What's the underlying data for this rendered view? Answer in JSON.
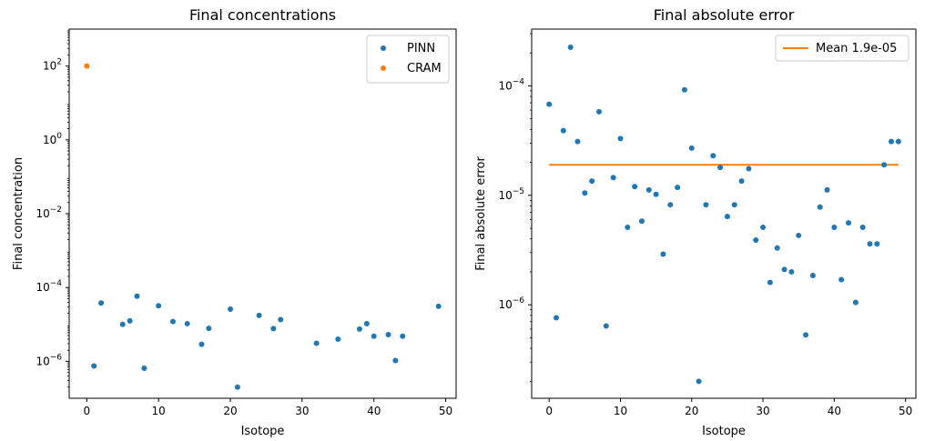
{
  "chart_data": [
    {
      "type": "scatter",
      "title": "Final concentrations",
      "xlabel": "Isotope",
      "ylabel": "Final concentration",
      "yscale": "log",
      "xlim": [
        -2.45,
        51.45
      ],
      "ylim": [
        1e-07,
        1000
      ],
      "xticks": [
        0,
        10,
        20,
        30,
        40,
        50
      ],
      "xtick_labels": [
        "0",
        "10",
        "20",
        "30",
        "40",
        "50"
      ],
      "yticks": [
        1e-06,
        0.0001,
        0.01,
        1,
        100
      ],
      "ytick_labels": [
        {
          "base": "10",
          "exp": "−6"
        },
        {
          "base": "10",
          "exp": "−4"
        },
        {
          "base": "10",
          "exp": "−2"
        },
        {
          "base": "10",
          "exp": "0"
        },
        {
          "base": "10",
          "exp": "2"
        }
      ],
      "legend": {
        "position": "upper right",
        "entries": [
          "PINN",
          "CRAM"
        ]
      },
      "series": [
        {
          "name": "PINN",
          "color": "#1f77b4",
          "x": [
            1,
            2,
            5,
            6,
            7,
            8,
            10,
            12,
            14,
            16,
            17,
            20,
            21,
            24,
            26,
            27,
            32,
            35,
            38,
            39,
            40,
            42,
            43,
            44,
            49
          ],
          "y": [
            7.5e-07,
            3.8e-05,
            1e-05,
            1.25e-05,
            5.8e-05,
            6.5e-07,
            3.2e-05,
            1.2e-05,
            1.05e-05,
            2.9e-06,
            7.8e-06,
            2.6e-05,
            2e-07,
            1.75e-05,
            7.7e-06,
            1.35e-05,
            3.1e-06,
            4e-06,
            7.5e-06,
            1.05e-05,
            4.8e-06,
            5.3e-06,
            1.05e-06,
            4.8e-06,
            3.1e-05
          ]
        },
        {
          "name": "CRAM",
          "color": "#ff7f0e",
          "x": [
            0
          ],
          "y": [
            100
          ]
        }
      ]
    },
    {
      "type": "scatter",
      "title": "Final absolute error",
      "xlabel": "Isotope",
      "ylabel": "Final absolute error",
      "yscale": "log",
      "xlim": [
        -2.45,
        51.45
      ],
      "ylim": [
        1.4e-07,
        0.00033
      ],
      "xticks": [
        0,
        10,
        20,
        30,
        40,
        50
      ],
      "xtick_labels": [
        "0",
        "10",
        "20",
        "30",
        "40",
        "50"
      ],
      "yticks": [
        1e-06,
        1e-05,
        0.0001
      ],
      "ytick_labels": [
        {
          "base": "10",
          "exp": "−6"
        },
        {
          "base": "10",
          "exp": "−5"
        },
        {
          "base": "10",
          "exp": "−4"
        }
      ],
      "legend": {
        "position": "upper right",
        "entries": [
          "Mean 1.9e-05"
        ]
      },
      "mean_line": {
        "label": "Mean 1.9e-05",
        "value": 1.9e-05,
        "x_range": [
          0,
          49
        ],
        "color": "#ff7f0e"
      },
      "series": [
        {
          "name": "",
          "color": "#1f77b4",
          "x": [
            0,
            1,
            2,
            3,
            4,
            5,
            6,
            7,
            8,
            9,
            10,
            11,
            12,
            13,
            14,
            15,
            16,
            17,
            18,
            19,
            20,
            21,
            22,
            23,
            24,
            25,
            26,
            27,
            28,
            29,
            30,
            31,
            32,
            33,
            34,
            35,
            36,
            37,
            38,
            39,
            40,
            41,
            42,
            43,
            44,
            45,
            46,
            47,
            48,
            49
          ],
          "y": [
            6.8e-05,
            7.6e-07,
            3.9e-05,
            0.000225,
            3.1e-05,
            1.05e-05,
            1.35e-05,
            5.8e-05,
            6.4e-07,
            1.45e-05,
            3.3e-05,
            5.1e-06,
            1.2e-05,
            5.8e-06,
            1.12e-05,
            1.02e-05,
            2.9e-06,
            8.2e-06,
            1.18e-05,
            9.2e-05,
            2.7e-05,
            2e-07,
            8.2e-06,
            2.3e-05,
            1.8e-05,
            6.4e-06,
            8.2e-06,
            1.35e-05,
            1.75e-05,
            3.9e-06,
            5.1e-06,
            1.6e-06,
            3.3e-06,
            2.1e-06,
            2e-06,
            4.3e-06,
            5.3e-07,
            1.85e-06,
            7.8e-06,
            1.12e-05,
            5.1e-06,
            1.7e-06,
            5.6e-06,
            1.05e-06,
            5.1e-06,
            3.6e-06,
            3.6e-06,
            1.9e-05,
            3.1e-05,
            3.1e-05
          ]
        }
      ]
    }
  ]
}
